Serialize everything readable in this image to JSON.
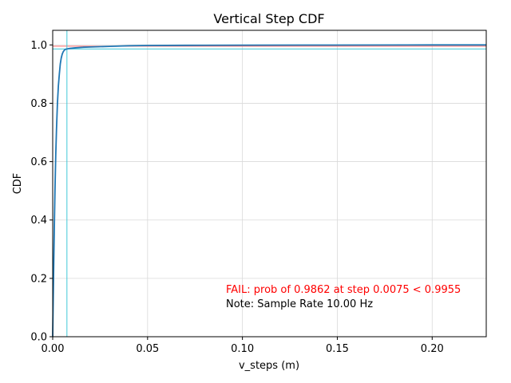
{
  "chart_data": {
    "type": "line",
    "title": "Vertical Step CDF",
    "xlabel": "v_steps (m)",
    "ylabel": "CDF",
    "xlim": [
      0,
      0.2285
    ],
    "ylim": [
      0,
      1.05
    ],
    "grid": true,
    "x_ticks": [
      0.0,
      0.05,
      0.1,
      0.15,
      0.2
    ],
    "x_tick_labels": [
      "0.00",
      "0.05",
      "0.10",
      "0.15",
      "0.20"
    ],
    "y_ticks": [
      0.0,
      0.2,
      0.4,
      0.6,
      0.8,
      1.0
    ],
    "y_tick_labels": [
      "0.0",
      "0.2",
      "0.4",
      "0.6",
      "0.8",
      "1.0"
    ],
    "series": [
      {
        "color": "#1f77b4",
        "x": [
          0.0,
          0.0003,
          0.0006,
          0.0009,
          0.0012,
          0.0016,
          0.002,
          0.0025,
          0.003,
          0.0035,
          0.004,
          0.0045,
          0.005,
          0.0055,
          0.006,
          0.0065,
          0.007,
          0.0075,
          0.009,
          0.012,
          0.016,
          0.02,
          0.03,
          0.04,
          0.05,
          0.07,
          0.1,
          0.15,
          0.2,
          0.2285
        ],
        "y": [
          0.0,
          0.14,
          0.27,
          0.39,
          0.5,
          0.62,
          0.71,
          0.8,
          0.86,
          0.9,
          0.935,
          0.955,
          0.968,
          0.976,
          0.981,
          0.984,
          0.9855,
          0.9862,
          0.988,
          0.99,
          0.992,
          0.993,
          0.995,
          0.997,
          0.998,
          0.9985,
          0.999,
          0.9995,
          1.0,
          1.0
        ]
      }
    ],
    "reference_lines": {
      "threshold_prob": {
        "y": 0.9955,
        "color": "#ff6b6b"
      },
      "measured_prob": {
        "y": 0.9862,
        "color": "#40c8d8"
      },
      "measured_step": {
        "x": 0.0075,
        "color": "#40c8d8"
      }
    },
    "annotations": [
      {
        "text": "FAIL: prob of 0.9862 at step 0.0075 < 0.9955",
        "color": "#ff0000"
      },
      {
        "text": "Note: Sample Rate 10.00 Hz",
        "color": "#000000"
      }
    ]
  }
}
